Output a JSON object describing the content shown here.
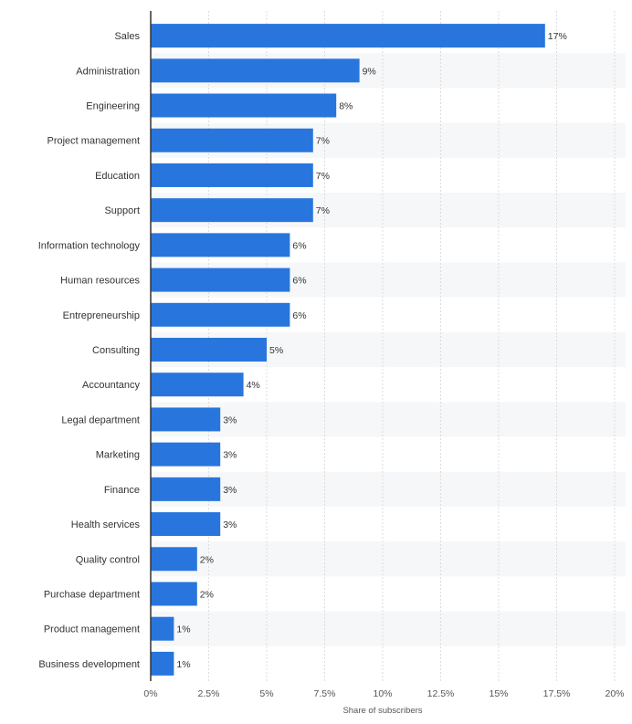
{
  "chart_data": {
    "type": "bar",
    "orientation": "horizontal",
    "categories": [
      "Sales",
      "Administration",
      "Engineering",
      "Project management",
      "Education",
      "Support",
      "Information technology",
      "Human resources",
      "Entrepreneurship",
      "Consulting",
      "Accountancy",
      "Legal department",
      "Marketing",
      "Finance",
      "Health services",
      "Quality control",
      "Purchase department",
      "Product management",
      "Business development"
    ],
    "values": [
      17,
      9,
      8,
      7,
      7,
      7,
      6,
      6,
      6,
      5,
      4,
      3,
      3,
      3,
      3,
      2,
      2,
      1,
      1
    ],
    "data_labels": [
      "17%",
      "9%",
      "8%",
      "7%",
      "7%",
      "7%",
      "6%",
      "6%",
      "6%",
      "5%",
      "4%",
      "3%",
      "3%",
      "3%",
      "3%",
      "2%",
      "2%",
      "1%",
      "1%"
    ],
    "xlim": [
      0,
      20
    ],
    "x_ticks": [
      0,
      2.5,
      5,
      7.5,
      10,
      12.5,
      15,
      17.5,
      20
    ],
    "x_tick_labels": [
      "0%",
      "2.5%",
      "5%",
      "7.5%",
      "10%",
      "12.5%",
      "15%",
      "17.5%",
      "20%"
    ],
    "xlabel": "Share of subscribers",
    "ylabel": "",
    "title": "",
    "grid": true,
    "legend": "none",
    "colors": {
      "bar": "#2876dd",
      "band": "#f6f7f9",
      "grid": "#dcdcdc",
      "axis": "#333333"
    }
  }
}
